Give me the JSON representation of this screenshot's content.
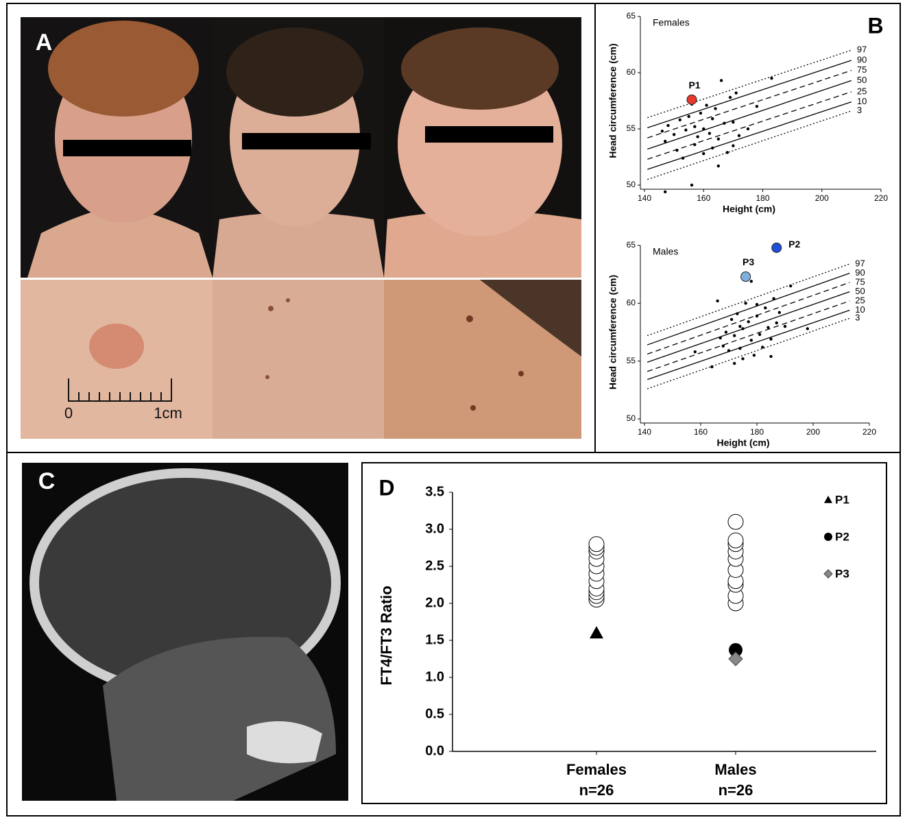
{
  "panel_labels": [
    "A",
    "B",
    "C",
    "D"
  ],
  "scale_bar_labels": [
    "0",
    "1cm"
  ],
  "chart_data": [
    {
      "type": "growth",
      "title": "Females",
      "x_label": "Height (cm)",
      "y_label": "Head circumference (cm)",
      "xlim": [
        140,
        220
      ],
      "ylim": [
        50,
        65
      ],
      "xticks": [
        140,
        160,
        180,
        200,
        220
      ],
      "yticks": [
        50,
        55,
        60,
        65
      ],
      "line_x": [
        141,
        210
      ],
      "percentiles": [
        {
          "name": "97",
          "dash": "dotted",
          "values": [
            56.0,
            62.0
          ]
        },
        {
          "name": "90",
          "dash": "solid",
          "values": [
            55.1,
            61.1
          ]
        },
        {
          "name": "75",
          "dash": "dashed",
          "values": [
            54.2,
            60.2
          ]
        },
        {
          "name": "50",
          "dash": "solid",
          "values": [
            53.2,
            59.3
          ]
        },
        {
          "name": "25",
          "dash": "dashed",
          "values": [
            52.3,
            58.3
          ]
        },
        {
          "name": "10",
          "dash": "solid",
          "values": [
            51.4,
            57.4
          ]
        },
        {
          "name": "3",
          "dash": "dotted",
          "values": [
            50.5,
            56.6
          ]
        }
      ],
      "points": {
        "x": [
          146,
          147,
          148,
          150,
          151,
          152,
          153,
          154,
          155,
          156,
          157,
          157,
          158,
          159,
          160,
          160,
          161,
          162,
          163,
          163,
          164,
          165,
          166,
          167,
          168,
          169,
          170,
          171,
          172,
          175,
          178,
          183,
          147,
          156,
          165,
          170
        ],
        "y": [
          54.8,
          49.4,
          55.3,
          54.5,
          53.1,
          55.8,
          52.4,
          54.9,
          56.1,
          50.0,
          55.2,
          53.6,
          54.3,
          56.4,
          55.0,
          52.8,
          57.1,
          54.6,
          55.9,
          53.3,
          56.8,
          54.1,
          59.3,
          55.5,
          52.9,
          57.8,
          55.6,
          58.2,
          54.4,
          55.0,
          57.0,
          59.5,
          53.9,
          57.2,
          51.7,
          53.5
        ]
      },
      "highlights": [
        {
          "name": "P1",
          "color": "#e8392f",
          "x": 156,
          "y": 57.6
        }
      ]
    },
    {
      "type": "growth",
      "title": "Males",
      "x_label": "Height (cm)",
      "y_label": "Head circumference (cm)",
      "xlim": [
        140,
        220
      ],
      "ylim": [
        50,
        65
      ],
      "xticks": [
        140,
        160,
        180,
        200,
        220
      ],
      "yticks": [
        50,
        55,
        60,
        65
      ],
      "line_x": [
        141,
        213
      ],
      "percentiles": [
        {
          "name": "97",
          "dash": "dotted",
          "values": [
            57.2,
            63.4
          ]
        },
        {
          "name": "90",
          "dash": "solid",
          "values": [
            56.4,
            62.6
          ]
        },
        {
          "name": "75",
          "dash": "dashed",
          "values": [
            55.6,
            61.8
          ]
        },
        {
          "name": "50",
          "dash": "solid",
          "values": [
            54.9,
            61.0
          ]
        },
        {
          "name": "25",
          "dash": "dashed",
          "values": [
            54.1,
            60.2
          ]
        },
        {
          "name": "10",
          "dash": "solid",
          "values": [
            53.4,
            59.4
          ]
        },
        {
          "name": "3",
          "dash": "dotted",
          "values": [
            52.6,
            58.7
          ]
        }
      ],
      "points": {
        "x": [
          158,
          164,
          166,
          168,
          169,
          170,
          171,
          172,
          172,
          173,
          174,
          175,
          175,
          176,
          177,
          178,
          178,
          179,
          180,
          181,
          182,
          183,
          184,
          185,
          186,
          187,
          188,
          190,
          192,
          198,
          167,
          174,
          180,
          185
        ],
        "y": [
          55.8,
          54.5,
          60.2,
          56.3,
          57.5,
          55.9,
          58.6,
          54.8,
          57.2,
          59.1,
          56.1,
          57.8,
          55.2,
          60.0,
          58.4,
          56.8,
          61.9,
          55.5,
          58.9,
          57.3,
          56.2,
          59.6,
          57.9,
          55.4,
          60.4,
          58.3,
          59.2,
          58.0,
          61.5,
          57.8,
          57.0,
          58.0,
          59.9,
          56.9
        ]
      },
      "highlights": [
        {
          "name": "P2",
          "color": "#1f4fd6",
          "x": 187,
          "y": 64.8
        },
        {
          "name": "P3",
          "color": "#7fb0e0",
          "x": 176,
          "y": 62.3
        }
      ]
    },
    {
      "type": "dot",
      "y_label": "FT4/FT3 Ratio",
      "categories": [
        "Females",
        "Males"
      ],
      "category_notes": [
        "n=26",
        "n=26"
      ],
      "ylim": [
        0,
        3.5
      ],
      "yticks": [
        {
          "value": 0,
          "label": "0.0"
        },
        {
          "value": 0.5,
          "label": "0.5"
        },
        {
          "value": 1,
          "label": "1.0"
        },
        {
          "value": 1.5,
          "label": "1.5"
        },
        {
          "value": 2,
          "label": "2.0"
        },
        {
          "value": 2.5,
          "label": "2.5"
        },
        {
          "value": 3,
          "label": "3.0"
        },
        {
          "value": 3.5,
          "label": "3.5"
        }
      ],
      "control_values": [
        [
          2.05,
          2.1,
          2.15,
          2.2,
          2.3,
          2.4,
          2.5,
          2.6,
          2.7,
          2.75,
          2.8
        ],
        [
          2.0,
          2.1,
          2.25,
          2.3,
          2.45,
          2.6,
          2.7,
          2.8,
          2.85,
          3.1
        ]
      ],
      "series": [
        {
          "name": "P1",
          "marker": "triangle",
          "color": "#000000",
          "values": [
            1.6,
            null
          ]
        },
        {
          "name": "P2",
          "marker": "circle",
          "color": "#000000",
          "values": [
            null,
            1.37
          ]
        },
        {
          "name": "P3",
          "marker": "diamond",
          "color": "#888888",
          "values": [
            null,
            1.25
          ]
        }
      ]
    }
  ]
}
